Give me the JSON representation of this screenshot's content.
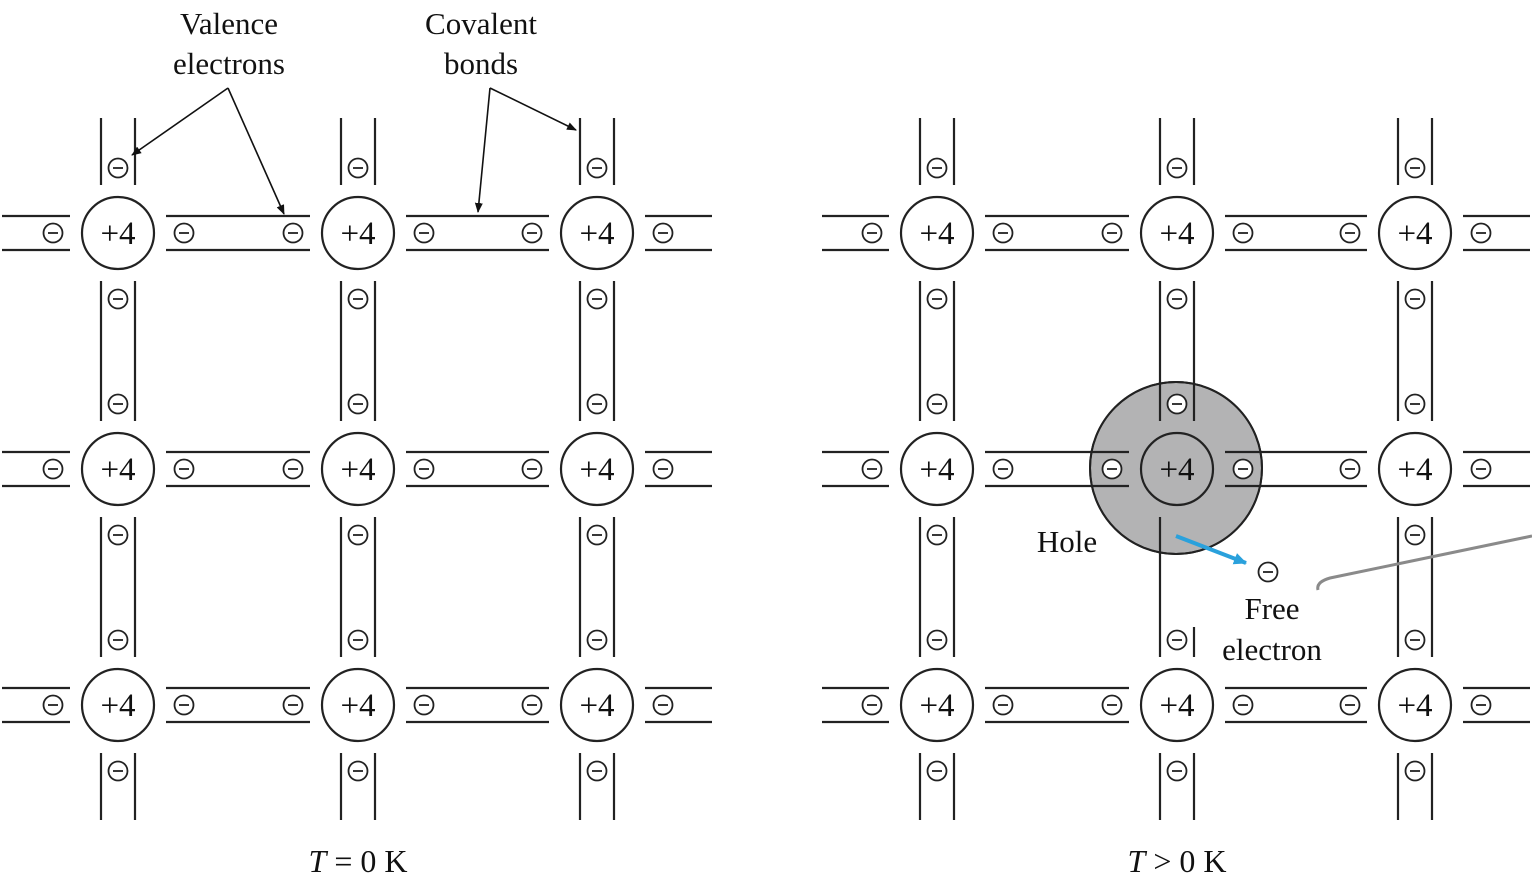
{
  "panels": [
    {
      "caption_var": "T",
      "caption_rest": " = 0 K"
    },
    {
      "caption_var": "T",
      "caption_rest": " > 0 K"
    }
  ],
  "atom_label": "+4",
  "electron_symbol": "−",
  "labels": {
    "valence_line1": "Valence",
    "valence_line2": "electrons",
    "covalent_line1": "Covalent",
    "covalent_line2": "bonds",
    "hole": "Hole",
    "free_line1": "Free",
    "free_line2": "electron"
  },
  "colors": {
    "hole_fill": "#b3b3b4",
    "free_electron_arrow": "#2aa1dc",
    "line": "#222222"
  }
}
